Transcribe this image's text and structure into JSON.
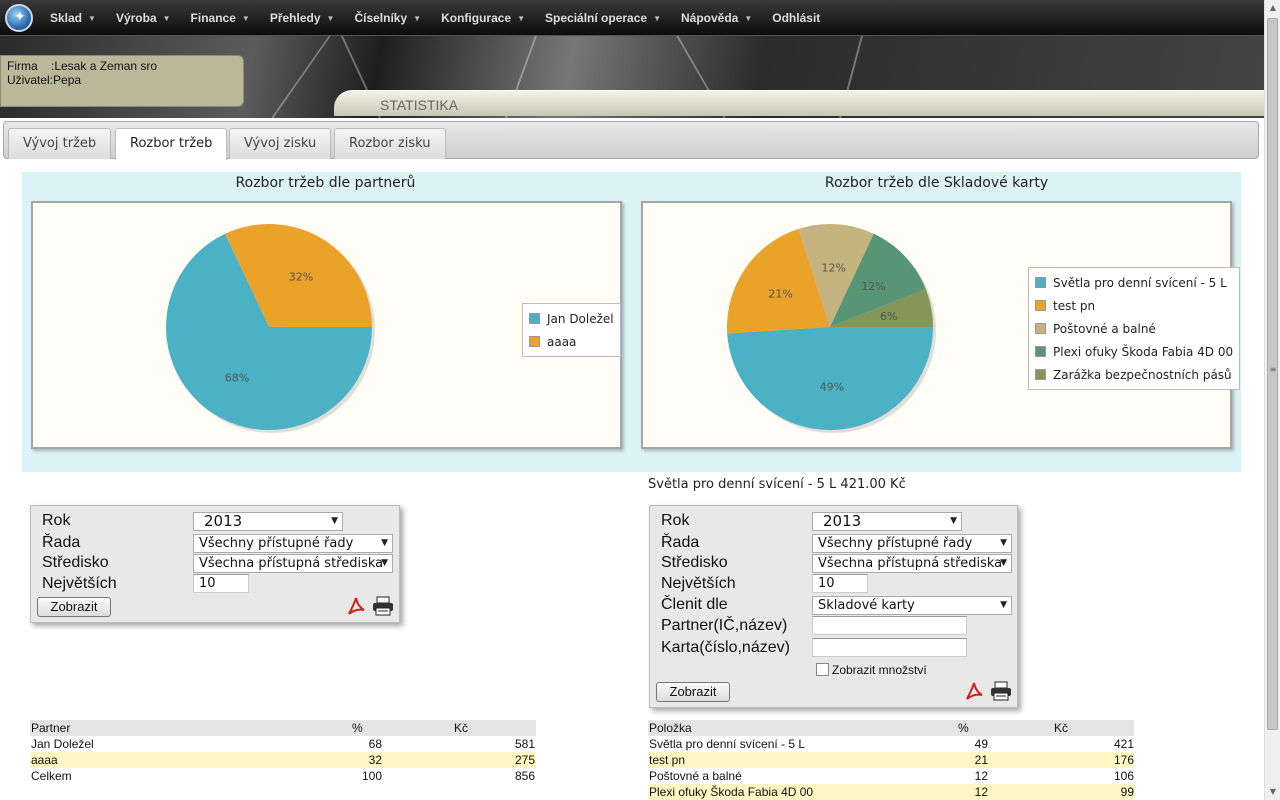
{
  "menu": [
    {
      "label": "Sklad",
      "caret": true
    },
    {
      "label": "Výroba",
      "caret": true
    },
    {
      "label": "Finance",
      "caret": true
    },
    {
      "label": "Přehledy",
      "caret": true
    },
    {
      "label": "Číselníky",
      "caret": true
    },
    {
      "label": "Konfigurace",
      "caret": true
    },
    {
      "label": "Speciální operace",
      "caret": true
    },
    {
      "label": "Nápověda",
      "caret": true
    },
    {
      "label": "Odhlásit",
      "caret": false
    }
  ],
  "user_info": {
    "firm_line": "Firma    :Lesak a Zeman sro",
    "user_line": "Uživatel:Pepa"
  },
  "page_title": "STATISTIKA",
  "tabs": [
    {
      "label": "Vývoj tržeb",
      "active": false
    },
    {
      "label": "Rozbor tržeb",
      "active": true
    },
    {
      "label": "Vývoj zisku",
      "active": false
    },
    {
      "label": "Rozbor zisku",
      "active": false
    }
  ],
  "chart_data": [
    {
      "type": "pie",
      "title": "Rozbor tržeb dle partnerů",
      "categories": [
        "Jan Doležel",
        "aaaa"
      ],
      "values": [
        68,
        32
      ],
      "colors": [
        "#4bb2c5",
        "#eaa228"
      ],
      "legend": "right"
    },
    {
      "type": "pie",
      "title": "Rozbor tržeb dle Skladové karty",
      "categories": [
        "Světla pro denní svícení - 5 L",
        "test pn",
        "Poštovné a balné",
        "Plexi ofuky Škoda Fabia 4D 00",
        "Zarážka bezpečnostních pásů"
      ],
      "values": [
        49,
        21,
        12,
        12,
        6
      ],
      "colors": [
        "#4bb2c5",
        "#eaa228",
        "#c5b47f",
        "#579575",
        "#839557"
      ],
      "legend": "right"
    }
  ],
  "right_summary": "Světla pro denní svícení - 5 L 421.00 Kč",
  "left_form": {
    "rok_label": "Rok",
    "rok_value": "2013",
    "rada_label": "Řada",
    "rada_value": "Všechny přístupné řady",
    "stredisko_label": "Středisko",
    "stredisko_value": "Všechna přístupná střediska",
    "nejvetsich_label": "Největších",
    "nejvetsich_value": "10",
    "submit": "Zobrazit"
  },
  "right_form": {
    "rok_label": "Rok",
    "rok_value": "2013",
    "rada_label": "Řada",
    "rada_value": "Všechny přístupné řady",
    "stredisko_label": "Středisko",
    "stredisko_value": "Všechna přístupná střediska",
    "nejvetsich_label": "Největších",
    "nejvetsich_value": "10",
    "clenit_label": "Členit dle",
    "clenit_value": "Skladové karty",
    "partner_label": "Partner(IČ,název)",
    "partner_value": "",
    "karta_label": "Karta(číslo,název)",
    "karta_value": "",
    "mnozstvi_label": "Zobrazit množství",
    "submit": "Zobrazit"
  },
  "left_table": {
    "headers": [
      "Partner",
      "%",
      "Kč"
    ],
    "rows": [
      [
        "Jan Doležel",
        "68",
        "581"
      ],
      [
        "aaaa",
        "32",
        "275"
      ],
      [
        "Celkem",
        "100",
        "856"
      ]
    ]
  },
  "right_table": {
    "headers": [
      "Položka",
      "%",
      "Kč"
    ],
    "rows": [
      [
        "Světla pro denní svícení - 5 L",
        "49",
        "421"
      ],
      [
        "test pn",
        "21",
        "176"
      ],
      [
        "Poštovné a balné",
        "12",
        "106"
      ],
      [
        "Plexi ofuky Škoda Fabia 4D 00",
        "12",
        "99"
      ]
    ]
  }
}
